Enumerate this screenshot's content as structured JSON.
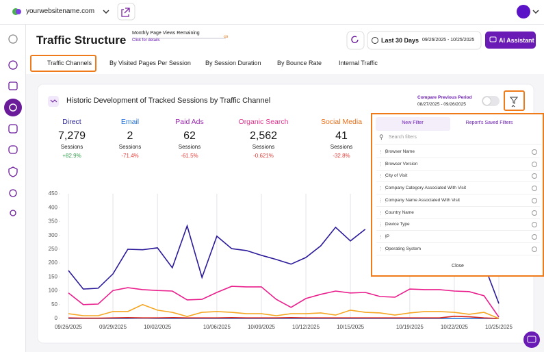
{
  "topbar": {
    "site": "yourwebsitename.com"
  },
  "header": {
    "title": "Traffic Structure",
    "quota_label": "Monthly Page Views Remaining",
    "quota_link": "Click for details",
    "quota_value": "∞",
    "range": "Last 30 Days",
    "dates": "09/26/2025 - 10/25/2025",
    "ai_button": "AI Assistant"
  },
  "tabs": [
    "Traffic Channels",
    "By Visited Pages Per Session",
    "By Session Duration",
    "By Bounce Rate",
    "Internal Traffic"
  ],
  "card": {
    "title": "Historic Development of Tracked Sessions by Traffic Channel",
    "compare_label": "Compare Previous Period",
    "compare_dates": "08/27/2025 - 09/26/2025"
  },
  "stats": [
    {
      "name": "Direct",
      "color": "#2e2a9c",
      "value": "7,279",
      "unit": "Sessions",
      "change": "+82.9%"
    },
    {
      "name": "Email",
      "color": "#1f6fd8",
      "value": "2",
      "unit": "Sessions",
      "change": "-71.4%"
    },
    {
      "name": "Paid Ads",
      "color": "#9c27b0",
      "value": "62",
      "unit": "Sessions",
      "change": "-61.5%"
    },
    {
      "name": "Organic Search",
      "color": "#e0338f",
      "value": "2,562",
      "unit": "Sessions",
      "change": "-0.621%"
    },
    {
      "name": "Social Media",
      "color": "#e8701a",
      "value": "41",
      "unit": "Sessions",
      "change": "-32.8%"
    }
  ],
  "chart_data": {
    "type": "line",
    "categories": [
      "09/26/2025",
      null,
      null,
      "09/29/2025",
      null,
      null,
      "10/02/2025",
      null,
      null,
      null,
      "10/06/2025",
      null,
      null,
      "10/09/2025",
      null,
      null,
      "10/12/2025",
      null,
      null,
      "10/15/2025",
      null,
      null,
      null,
      "10/19/2025",
      null,
      null,
      "10/22/2025",
      null,
      null,
      "10/25/2025"
    ],
    "series": [
      {
        "color": "#2a1a9a",
        "values": [
          173,
          106,
          109,
          161,
          250,
          248,
          255,
          183,
          334,
          148,
          297,
          252,
          245,
          228,
          213,
          196,
          220,
          262,
          329,
          280,
          322,
          null,
          null,
          null,
          null,
          null,
          null,
          null,
          195,
          54
        ]
      },
      {
        "color": "#1f6fd8",
        "values": [
          0,
          0,
          0,
          0,
          0,
          1,
          0,
          0,
          0,
          0,
          0,
          0,
          0,
          0,
          0,
          0,
          0,
          0,
          0,
          0,
          0,
          0,
          0,
          0,
          0,
          0,
          0,
          0,
          0,
          0
        ]
      },
      {
        "color": "#d9261c",
        "values": [
          2,
          1,
          1,
          2,
          3,
          2,
          2,
          3,
          2,
          2,
          2,
          3,
          2,
          2,
          2,
          3,
          2,
          2,
          2,
          2,
          2,
          2,
          2,
          2,
          2,
          2,
          8,
          6,
          2,
          0
        ]
      },
      {
        "color": "#e91e8c",
        "values": [
          92,
          50,
          52,
          101,
          111,
          104,
          101,
          99,
          67,
          69,
          94,
          116,
          114,
          114,
          69,
          40,
          72,
          87,
          99,
          92,
          94,
          79,
          77,
          106,
          104,
          104,
          99,
          97,
          82,
          5
        ]
      },
      {
        "color": "#f5a623",
        "values": [
          17,
          10,
          10,
          25,
          25,
          50,
          30,
          22,
          7,
          22,
          25,
          22,
          17,
          17,
          10,
          17,
          17,
          20,
          12,
          30,
          22,
          20,
          12,
          20,
          25,
          25,
          22,
          15,
          22,
          0
        ]
      }
    ],
    "ylim": [
      0,
      450
    ],
    "yticks": [
      0,
      50,
      100,
      150,
      200,
      250,
      300,
      350,
      400,
      450
    ],
    "grid": "vertical"
  },
  "filter_panel": {
    "tabs": [
      "New Filter",
      "Report's Saved Filters"
    ],
    "search_placeholder": "Search filters",
    "items": [
      "Browser Name",
      "Browser Version",
      "City of Visit",
      "Company Category Associated With Visit",
      "Company Name Associated With Visit",
      "Country Name",
      "Device Type",
      "IP",
      "Operating System"
    ],
    "close": "Close"
  }
}
